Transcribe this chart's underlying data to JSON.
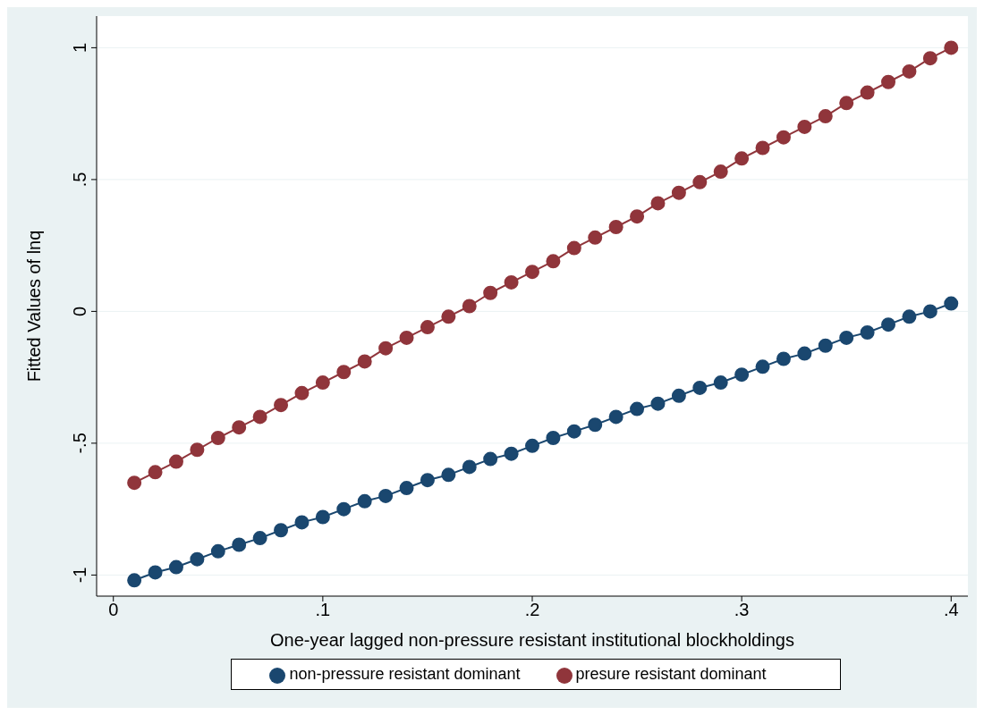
{
  "chart_data": {
    "type": "line",
    "xlabel": "One-year lagged non-pressure resistant institutional blockholdings",
    "ylabel": "Fitted Values of lnq",
    "x": [
      0.01,
      0.02,
      0.03,
      0.04,
      0.05,
      0.06,
      0.07,
      0.08,
      0.09,
      0.1,
      0.11,
      0.12,
      0.13,
      0.14,
      0.15,
      0.16,
      0.17,
      0.18,
      0.19,
      0.2,
      0.21,
      0.22,
      0.23,
      0.24,
      0.25,
      0.26,
      0.27,
      0.28,
      0.29,
      0.3,
      0.31,
      0.32,
      0.33,
      0.34,
      0.35,
      0.36,
      0.37,
      0.38,
      0.39,
      0.4
    ],
    "series": [
      {
        "name": "non-pressure resistant dominant",
        "color": "#1a476f",
        "values": [
          -1.02,
          -0.99,
          -0.97,
          -0.94,
          -0.91,
          -0.885,
          -0.86,
          -0.83,
          -0.8,
          -0.78,
          -0.75,
          -0.72,
          -0.7,
          -0.67,
          -0.64,
          -0.62,
          -0.59,
          -0.56,
          -0.54,
          -0.51,
          -0.48,
          -0.455,
          -0.43,
          -0.4,
          -0.37,
          -0.35,
          -0.32,
          -0.29,
          -0.27,
          -0.24,
          -0.21,
          -0.18,
          -0.16,
          -0.13,
          -0.1,
          -0.08,
          -0.05,
          -0.02,
          0.0,
          0.03
        ]
      },
      {
        "name": "presure resistant dominant",
        "color": "#90353b",
        "values": [
          -0.65,
          -0.61,
          -0.57,
          -0.525,
          -0.48,
          -0.44,
          -0.4,
          -0.355,
          -0.31,
          -0.27,
          -0.23,
          -0.19,
          -0.14,
          -0.1,
          -0.06,
          -0.02,
          0.02,
          0.07,
          0.11,
          0.15,
          0.19,
          0.24,
          0.28,
          0.32,
          0.36,
          0.41,
          0.45,
          0.49,
          0.53,
          0.58,
          0.62,
          0.66,
          0.7,
          0.74,
          0.79,
          0.83,
          0.87,
          0.91,
          0.96,
          1.0
        ]
      }
    ],
    "xlim": [
      -0.008,
      0.408
    ],
    "ylim": [
      -1.08,
      1.12
    ],
    "xticks": [
      0,
      {
        "value": 0.1,
        "label": ".1"
      },
      {
        "value": 0.2,
        "label": ".2"
      },
      {
        "value": 0.3,
        "label": ".3"
      },
      {
        "value": 0.4,
        "label": ".4"
      }
    ],
    "yticks": [
      -1,
      {
        "value": -0.5,
        "label": "-.5"
      },
      0,
      {
        "value": 0.5,
        "label": ".5"
      },
      1
    ],
    "grid": "y",
    "legend": "bottom",
    "marker": "circle",
    "line_style": "solid"
  }
}
